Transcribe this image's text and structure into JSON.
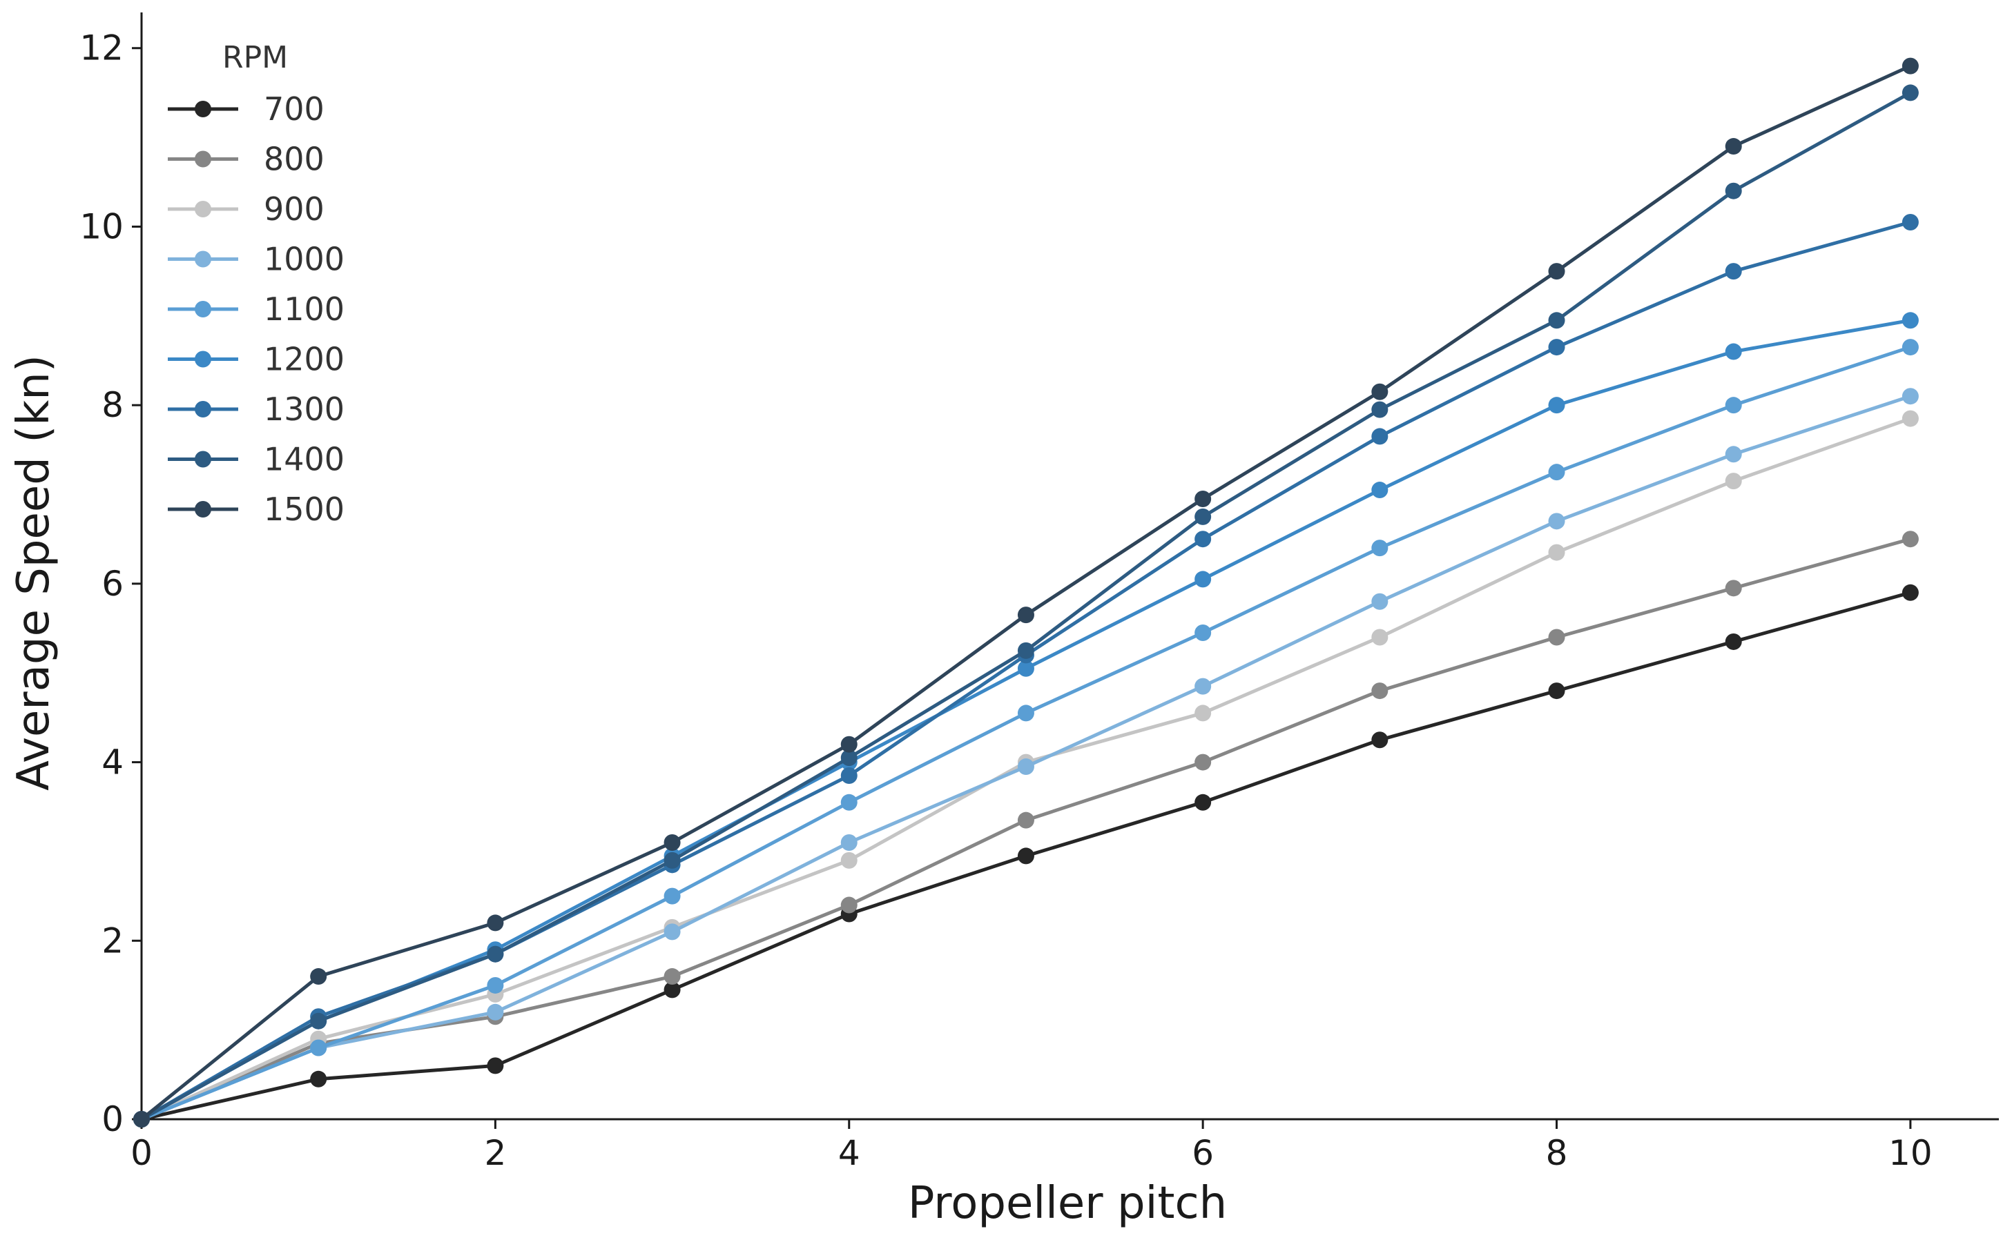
{
  "chart_data": {
    "type": "line",
    "title": "",
    "xlabel": "Propeller pitch",
    "ylabel": "Average Speed (kn)",
    "xlim": [
      0,
      10.5
    ],
    "ylim": [
      0,
      12.4
    ],
    "xticks": [
      0,
      2,
      4,
      6,
      8,
      10
    ],
    "yticks": [
      0,
      2,
      4,
      6,
      8,
      10,
      12
    ],
    "xtick_labels": [
      "0",
      "2",
      "4",
      "6",
      "8",
      "10"
    ],
    "ytick_labels": [
      "0",
      "2",
      "4",
      "6",
      "8",
      "10",
      "12"
    ],
    "grid": false,
    "legend": {
      "title": "RPM",
      "position": "top-left"
    },
    "x": [
      0,
      1,
      2,
      3,
      4,
      5,
      6,
      7,
      8,
      9,
      10
    ],
    "series": [
      {
        "name": "700",
        "color": "#262626",
        "values": [
          0,
          0.45,
          0.6,
          1.45,
          2.3,
          2.95,
          3.55,
          4.25,
          4.8,
          5.35,
          5.9
        ]
      },
      {
        "name": "800",
        "color": "#868686",
        "values": [
          0,
          0.85,
          1.15,
          1.6,
          2.4,
          3.35,
          4.0,
          4.8,
          5.4,
          5.95,
          6.5
        ]
      },
      {
        "name": "900",
        "color": "#c4c4c4",
        "values": [
          0,
          0.9,
          1.4,
          2.15,
          2.9,
          4.0,
          4.55,
          5.4,
          6.35,
          7.15,
          7.85
        ]
      },
      {
        "name": "1000",
        "color": "#7fb2dc",
        "values": [
          0,
          0.8,
          1.2,
          2.1,
          3.1,
          3.95,
          4.85,
          5.8,
          6.7,
          7.45,
          8.1
        ]
      },
      {
        "name": "1100",
        "color": "#5a9ed4",
        "values": [
          0,
          0.8,
          1.5,
          2.5,
          3.55,
          4.55,
          5.45,
          6.4,
          7.25,
          8.0,
          8.65
        ]
      },
      {
        "name": "1200",
        "color": "#3b88c6",
        "values": [
          0,
          1.1,
          1.9,
          2.95,
          4.0,
          5.05,
          6.05,
          7.05,
          8.0,
          8.6,
          8.95
        ]
      },
      {
        "name": "1300",
        "color": "#2f6fa5",
        "values": [
          0,
          1.15,
          1.85,
          2.85,
          3.85,
          5.2,
          6.5,
          7.65,
          8.65,
          9.5,
          10.05
        ]
      },
      {
        "name": "1400",
        "color": "#2d5b82",
        "values": [
          0,
          1.1,
          1.85,
          2.9,
          4.05,
          5.25,
          6.75,
          7.95,
          8.95,
          10.4,
          11.5
        ]
      },
      {
        "name": "1500",
        "color": "#2e4459",
        "values": [
          0,
          1.6,
          2.2,
          3.1,
          4.2,
          5.65,
          6.95,
          8.15,
          9.5,
          10.9,
          11.8
        ]
      }
    ]
  }
}
